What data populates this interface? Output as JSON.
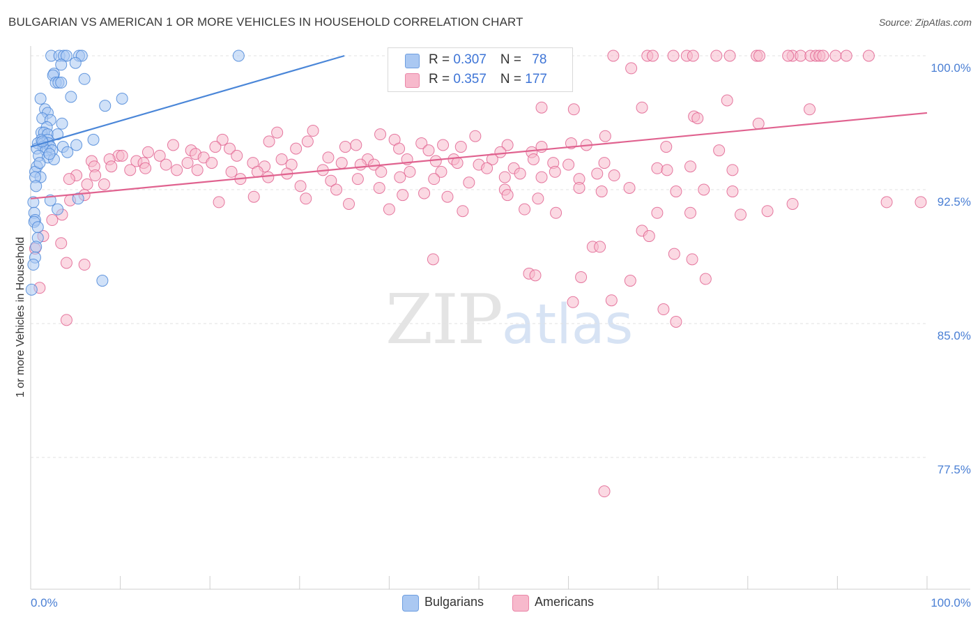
{
  "header": {
    "title": "BULGARIAN VS AMERICAN 1 OR MORE VEHICLES IN HOUSEHOLD CORRELATION CHART",
    "source": "Source: ZipAtlas.com"
  },
  "watermark": {
    "zip": "ZIP",
    "atlas": "atlas"
  },
  "legend": {
    "rows": [
      {
        "r_label": "R = ",
        "r_value": "0.307",
        "n_label": "N = ",
        "n_value": "78",
        "color": "#aac8f2"
      },
      {
        "r_label": "R = ",
        "r_value": "0.357",
        "n_label": "N = ",
        "n_value": "177",
        "color": "#f7b9cc"
      }
    ]
  },
  "bottom_legend": [
    {
      "label": "Bulgarians",
      "color": "#aac8f2"
    },
    {
      "label": "Americans",
      "color": "#f7b9cc"
    }
  ],
  "chart_data": {
    "type": "scatter",
    "title": "BULGARIAN VS AMERICAN 1 OR MORE VEHICLES IN HOUSEHOLD CORRELATION CHART",
    "ylabel": "1 or more Vehicles in Household",
    "xlabel": "",
    "xlim": [
      0,
      100
    ],
    "ylim": [
      70.0,
      100.6
    ],
    "x_tick_labels": [
      "0.0%",
      "100.0%"
    ],
    "y_ticks": [
      100.0,
      92.5,
      85.0,
      77.5
    ],
    "y_tick_labels": [
      "100.0%",
      "92.5%",
      "85.0%",
      "77.5%"
    ],
    "grid": true,
    "series": [
      {
        "name": "Bulgarians",
        "color": "#4a86d8",
        "fill": "#aac8f2",
        "trend": {
          "x": [
            0,
            35
          ],
          "y": [
            94.9,
            100.0
          ]
        },
        "points": [
          [
            2.3,
            100.0
          ],
          [
            3.2,
            100.0
          ],
          [
            3.7,
            100.0
          ],
          [
            4.0,
            100.0
          ],
          [
            5.4,
            100.0
          ],
          [
            5.7,
            100.0
          ],
          [
            23.2,
            100.0
          ],
          [
            2.6,
            99.0
          ],
          [
            3.4,
            99.5
          ],
          [
            5.0,
            99.6
          ],
          [
            2.5,
            98.9
          ],
          [
            2.8,
            98.5
          ],
          [
            3.1,
            98.5
          ],
          [
            3.4,
            98.5
          ],
          [
            6.0,
            98.7
          ],
          [
            1.1,
            97.6
          ],
          [
            4.5,
            97.7
          ],
          [
            10.2,
            97.6
          ],
          [
            8.3,
            97.2
          ],
          [
            1.6,
            97.0
          ],
          [
            1.9,
            96.8
          ],
          [
            1.3,
            96.5
          ],
          [
            2.2,
            96.4
          ],
          [
            3.5,
            96.2
          ],
          [
            1.8,
            96.0
          ],
          [
            1.2,
            95.7
          ],
          [
            1.5,
            95.7
          ],
          [
            1.9,
            95.6
          ],
          [
            3.0,
            95.6
          ],
          [
            1.2,
            95.3
          ],
          [
            1.9,
            95.3
          ],
          [
            0.8,
            95.1
          ],
          [
            1.4,
            95.1
          ],
          [
            2.0,
            95.1
          ],
          [
            1.4,
            94.9
          ],
          [
            2.2,
            94.9
          ],
          [
            3.6,
            94.9
          ],
          [
            5.1,
            95.0
          ],
          [
            7.0,
            95.3
          ],
          [
            0.7,
            94.8
          ],
          [
            1.7,
            94.7
          ],
          [
            2.4,
            94.7
          ],
          [
            4.1,
            94.6
          ],
          [
            0.9,
            94.4
          ],
          [
            1.9,
            94.3
          ],
          [
            2.6,
            94.2
          ],
          [
            0.7,
            93.8
          ],
          [
            0.5,
            93.5
          ],
          [
            1.1,
            93.2
          ],
          [
            0.5,
            93.2
          ],
          [
            0.3,
            91.8
          ],
          [
            2.2,
            91.9
          ],
          [
            5.3,
            92.0
          ],
          [
            0.4,
            91.2
          ],
          [
            3.0,
            91.4
          ],
          [
            0.5,
            90.8
          ],
          [
            0.4,
            90.7
          ],
          [
            0.8,
            90.4
          ],
          [
            0.8,
            89.8
          ],
          [
            0.6,
            89.3
          ],
          [
            0.5,
            88.7
          ],
          [
            0.3,
            88.3
          ],
          [
            8.0,
            87.4
          ],
          [
            0.1,
            86.9
          ],
          [
            1.3,
            95.2
          ],
          [
            2.1,
            94.5
          ],
          [
            1.0,
            94.0
          ],
          [
            0.6,
            92.7
          ]
        ]
      },
      {
        "name": "Americans",
        "color": "#e0628f",
        "fill": "#f7b9cc",
        "trend": {
          "x": [
            0,
            100
          ],
          "y": [
            92.0,
            96.8
          ]
        },
        "points": [
          [
            65.0,
            100.0
          ],
          [
            68.8,
            100.0
          ],
          [
            69.4,
            100.0
          ],
          [
            71.7,
            100.0
          ],
          [
            73.2,
            100.0
          ],
          [
            73.9,
            100.0
          ],
          [
            76.5,
            100.0
          ],
          [
            78.0,
            100.0
          ],
          [
            81.0,
            100.0
          ],
          [
            81.3,
            100.0
          ],
          [
            85.0,
            100.0
          ],
          [
            85.9,
            100.0
          ],
          [
            87.0,
            100.0
          ],
          [
            87.6,
            100.0
          ],
          [
            88.0,
            100.0
          ],
          [
            88.4,
            100.0
          ],
          [
            89.8,
            100.0
          ],
          [
            91.0,
            100.0
          ],
          [
            93.5,
            100.0
          ],
          [
            84.5,
            100.0
          ],
          [
            67.0,
            99.3
          ],
          [
            54.5,
            98.5
          ],
          [
            77.7,
            97.5
          ],
          [
            57.0,
            97.1
          ],
          [
            60.6,
            97.0
          ],
          [
            68.2,
            97.1
          ],
          [
            74.0,
            96.6
          ],
          [
            74.4,
            96.5
          ],
          [
            86.9,
            97.0
          ],
          [
            81.2,
            96.2
          ],
          [
            31.5,
            95.8
          ],
          [
            27.5,
            95.7
          ],
          [
            39.0,
            95.6
          ],
          [
            49.6,
            95.5
          ],
          [
            64.1,
            95.5
          ],
          [
            57.0,
            94.9
          ],
          [
            60.3,
            95.1
          ],
          [
            62.0,
            95.0
          ],
          [
            70.9,
            94.9
          ],
          [
            21.4,
            95.3
          ],
          [
            26.6,
            95.2
          ],
          [
            30.9,
            95.2
          ],
          [
            36.3,
            95.0
          ],
          [
            40.6,
            95.3
          ],
          [
            43.6,
            95.1
          ],
          [
            46.0,
            95.0
          ],
          [
            48.0,
            94.9
          ],
          [
            53.2,
            95.0
          ],
          [
            15.9,
            95.0
          ],
          [
            20.6,
            94.9
          ],
          [
            22.2,
            94.8
          ],
          [
            29.6,
            94.8
          ],
          [
            35.1,
            94.9
          ],
          [
            41.1,
            94.8
          ],
          [
            44.4,
            94.7
          ],
          [
            52.4,
            94.6
          ],
          [
            55.9,
            94.6
          ],
          [
            76.8,
            94.7
          ],
          [
            17.9,
            94.7
          ],
          [
            18.4,
            94.5
          ],
          [
            13.1,
            94.6
          ],
          [
            9.8,
            94.4
          ],
          [
            10.2,
            94.4
          ],
          [
            14.4,
            94.4
          ],
          [
            19.3,
            94.3
          ],
          [
            23.0,
            94.4
          ],
          [
            28.0,
            94.2
          ],
          [
            33.2,
            94.3
          ],
          [
            37.6,
            94.2
          ],
          [
            42.0,
            94.2
          ],
          [
            47.2,
            94.2
          ],
          [
            51.5,
            94.2
          ],
          [
            56.1,
            94.2
          ],
          [
            58.3,
            94.0
          ],
          [
            64.0,
            94.0
          ],
          [
            6.8,
            94.1
          ],
          [
            8.8,
            94.2
          ],
          [
            11.8,
            94.1
          ],
          [
            12.6,
            94.0
          ],
          [
            15.1,
            93.9
          ],
          [
            17.5,
            94.0
          ],
          [
            20.2,
            94.0
          ],
          [
            24.8,
            94.0
          ],
          [
            26.1,
            93.8
          ],
          [
            29.1,
            93.9
          ],
          [
            34.7,
            94.0
          ],
          [
            36.8,
            93.9
          ],
          [
            38.3,
            93.9
          ],
          [
            45.2,
            94.1
          ],
          [
            47.6,
            94.0
          ],
          [
            50.0,
            93.9
          ],
          [
            53.9,
            93.7
          ],
          [
            60.0,
            93.9
          ],
          [
            69.9,
            93.7
          ],
          [
            73.6,
            93.8
          ],
          [
            7.1,
            93.8
          ],
          [
            9.0,
            93.8
          ],
          [
            11.1,
            93.6
          ],
          [
            12.8,
            93.7
          ],
          [
            16.3,
            93.6
          ],
          [
            18.6,
            93.6
          ],
          [
            22.4,
            93.5
          ],
          [
            25.3,
            93.5
          ],
          [
            28.6,
            93.4
          ],
          [
            32.6,
            93.6
          ],
          [
            39.1,
            93.5
          ],
          [
            42.3,
            93.5
          ],
          [
            45.8,
            93.5
          ],
          [
            50.9,
            93.7
          ],
          [
            54.6,
            93.4
          ],
          [
            58.5,
            93.5
          ],
          [
            63.2,
            93.4
          ],
          [
            71.0,
            93.6
          ],
          [
            78.3,
            93.6
          ],
          [
            5.1,
            93.3
          ],
          [
            7.2,
            93.3
          ],
          [
            23.4,
            93.1
          ],
          [
            26.5,
            93.2
          ],
          [
            33.5,
            93.0
          ],
          [
            36.5,
            93.1
          ],
          [
            41.2,
            93.2
          ],
          [
            45.0,
            93.1
          ],
          [
            48.9,
            92.9
          ],
          [
            52.9,
            93.2
          ],
          [
            57.0,
            93.2
          ],
          [
            61.2,
            93.1
          ],
          [
            65.1,
            93.3
          ],
          [
            4.3,
            93.1
          ],
          [
            6.3,
            92.8
          ],
          [
            8.2,
            92.8
          ],
          [
            30.1,
            92.7
          ],
          [
            34.1,
            92.5
          ],
          [
            38.9,
            92.6
          ],
          [
            43.9,
            92.3
          ],
          [
            52.9,
            92.5
          ],
          [
            61.2,
            92.6
          ],
          [
            63.7,
            92.4
          ],
          [
            66.8,
            92.6
          ],
          [
            72.0,
            92.4
          ],
          [
            75.1,
            92.5
          ],
          [
            78.3,
            92.4
          ],
          [
            4.4,
            91.9
          ],
          [
            6.0,
            92.2
          ],
          [
            24.9,
            92.1
          ],
          [
            30.7,
            92.0
          ],
          [
            41.5,
            92.2
          ],
          [
            46.5,
            92.1
          ],
          [
            53.2,
            92.2
          ],
          [
            56.6,
            92.0
          ],
          [
            3.5,
            91.1
          ],
          [
            21.0,
            91.8
          ],
          [
            35.5,
            91.7
          ],
          [
            40.0,
            91.4
          ],
          [
            48.2,
            91.3
          ],
          [
            55.1,
            91.4
          ],
          [
            58.6,
            91.2
          ],
          [
            69.9,
            91.2
          ],
          [
            73.6,
            91.2
          ],
          [
            79.2,
            91.1
          ],
          [
            82.2,
            91.3
          ],
          [
            85.0,
            91.7
          ],
          [
            95.5,
            91.8
          ],
          [
            99.3,
            91.8
          ],
          [
            2.4,
            90.8
          ],
          [
            1.4,
            89.9
          ],
          [
            3.4,
            89.5
          ],
          [
            0.5,
            89.2
          ],
          [
            4.0,
            88.4
          ],
          [
            6.0,
            88.3
          ],
          [
            44.9,
            88.6
          ],
          [
            55.6,
            87.8
          ],
          [
            56.3,
            87.7
          ],
          [
            61.4,
            87.6
          ],
          [
            62.7,
            89.3
          ],
          [
            63.5,
            89.3
          ],
          [
            71.8,
            88.9
          ],
          [
            73.8,
            88.6
          ],
          [
            75.3,
            87.5
          ],
          [
            68.2,
            90.2
          ],
          [
            69.0,
            89.9
          ],
          [
            66.9,
            87.4
          ],
          [
            64.8,
            86.3
          ],
          [
            60.5,
            86.2
          ],
          [
            70.6,
            85.8
          ],
          [
            72.0,
            85.1
          ],
          [
            1.0,
            87.0
          ],
          [
            4.0,
            85.2
          ],
          [
            64.0,
            75.6
          ]
        ]
      }
    ],
    "annotations": []
  }
}
